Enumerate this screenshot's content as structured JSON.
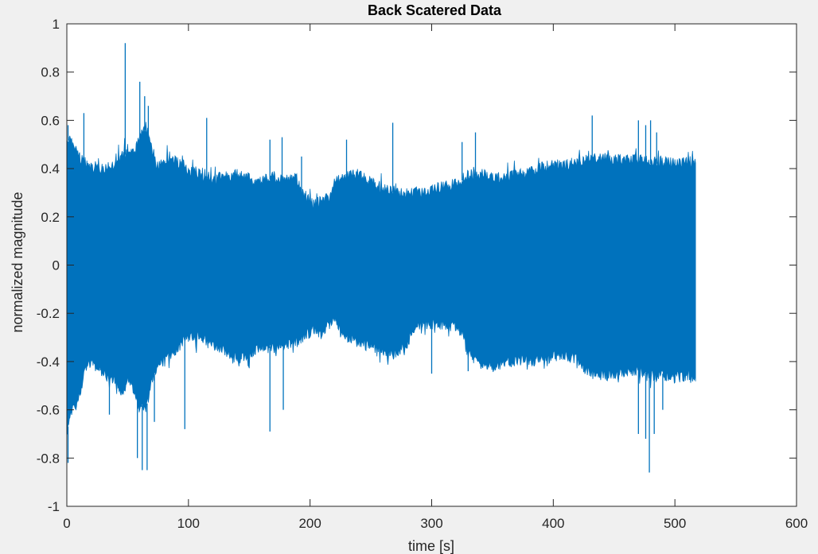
{
  "chart_data": {
    "type": "line",
    "title": "Back Scatered Data",
    "xlabel": "time [s]",
    "ylabel": "normalized magnitude",
    "xlim": [
      0,
      600
    ],
    "ylim": [
      -1,
      1
    ],
    "xticks": [
      0,
      100,
      200,
      300,
      400,
      500,
      600
    ],
    "yticks": [
      -1,
      -0.8,
      -0.6,
      -0.4,
      -0.2,
      0,
      0.2,
      0.4,
      0.6,
      0.8,
      1
    ],
    "xtick_labels": [
      "0",
      "100",
      "200",
      "300",
      "400",
      "500",
      "600"
    ],
    "ytick_labels": [
      "-1",
      "-0.8",
      "-0.6",
      "-0.4",
      "-0.2",
      "0",
      "0.2",
      "0.4",
      "0.6",
      "0.8",
      "1"
    ],
    "grid": false,
    "line_color": "#0072BD",
    "series": [
      {
        "description": "oscillating signal filling between upper and lower envelopes",
        "x_range": [
          0,
          517
        ],
        "upper_envelope": [
          [
            0,
            0.55
          ],
          [
            5,
            0.53
          ],
          [
            10,
            0.47
          ],
          [
            15,
            0.45
          ],
          [
            20,
            0.43
          ],
          [
            25,
            0.44
          ],
          [
            30,
            0.42
          ],
          [
            40,
            0.45
          ],
          [
            45,
            0.47
          ],
          [
            50,
            0.5
          ],
          [
            55,
            0.48
          ],
          [
            60,
            0.55
          ],
          [
            65,
            0.6
          ],
          [
            70,
            0.5
          ],
          [
            75,
            0.43
          ],
          [
            80,
            0.45
          ],
          [
            85,
            0.47
          ],
          [
            90,
            0.45
          ],
          [
            100,
            0.41
          ],
          [
            110,
            0.4
          ],
          [
            120,
            0.38
          ],
          [
            130,
            0.39
          ],
          [
            140,
            0.4
          ],
          [
            150,
            0.38
          ],
          [
            160,
            0.37
          ],
          [
            170,
            0.39
          ],
          [
            180,
            0.38
          ],
          [
            190,
            0.38
          ],
          [
            195,
            0.3
          ],
          [
            200,
            0.29
          ],
          [
            205,
            0.28
          ],
          [
            210,
            0.29
          ],
          [
            215,
            0.3
          ],
          [
            220,
            0.37
          ],
          [
            225,
            0.38
          ],
          [
            230,
            0.39
          ],
          [
            240,
            0.4
          ],
          [
            250,
            0.37
          ],
          [
            260,
            0.34
          ],
          [
            270,
            0.33
          ],
          [
            280,
            0.32
          ],
          [
            290,
            0.33
          ],
          [
            300,
            0.34
          ],
          [
            310,
            0.35
          ],
          [
            320,
            0.36
          ],
          [
            325,
            0.38
          ],
          [
            330,
            0.4
          ],
          [
            340,
            0.4
          ],
          [
            350,
            0.39
          ],
          [
            360,
            0.38
          ],
          [
            370,
            0.4
          ],
          [
            380,
            0.41
          ],
          [
            390,
            0.43
          ],
          [
            400,
            0.44
          ],
          [
            410,
            0.44
          ],
          [
            420,
            0.45
          ],
          [
            430,
            0.46
          ],
          [
            440,
            0.47
          ],
          [
            450,
            0.46
          ],
          [
            460,
            0.46
          ],
          [
            470,
            0.46
          ],
          [
            480,
            0.45
          ],
          [
            490,
            0.45
          ],
          [
            500,
            0.45
          ],
          [
            510,
            0.45
          ],
          [
            517,
            0.45
          ]
        ],
        "lower_envelope": [
          [
            0,
            -0.72
          ],
          [
            5,
            -0.62
          ],
          [
            10,
            -0.58
          ],
          [
            15,
            -0.45
          ],
          [
            20,
            -0.42
          ],
          [
            25,
            -0.45
          ],
          [
            30,
            -0.47
          ],
          [
            40,
            -0.5
          ],
          [
            45,
            -0.55
          ],
          [
            50,
            -0.5
          ],
          [
            55,
            -0.55
          ],
          [
            60,
            -0.6
          ],
          [
            65,
            -0.63
          ],
          [
            70,
            -0.5
          ],
          [
            75,
            -0.45
          ],
          [
            80,
            -0.42
          ],
          [
            85,
            -0.4
          ],
          [
            90,
            -0.37
          ],
          [
            100,
            -0.32
          ],
          [
            110,
            -0.32
          ],
          [
            120,
            -0.35
          ],
          [
            130,
            -0.38
          ],
          [
            140,
            -0.41
          ],
          [
            150,
            -0.39
          ],
          [
            160,
            -0.36
          ],
          [
            170,
            -0.37
          ],
          [
            180,
            -0.35
          ],
          [
            190,
            -0.34
          ],
          [
            195,
            -0.32
          ],
          [
            200,
            -0.3
          ],
          [
            210,
            -0.3
          ],
          [
            215,
            -0.27
          ],
          [
            220,
            -0.25
          ],
          [
            225,
            -0.3
          ],
          [
            230,
            -0.32
          ],
          [
            240,
            -0.35
          ],
          [
            250,
            -0.36
          ],
          [
            260,
            -0.38
          ],
          [
            270,
            -0.39
          ],
          [
            280,
            -0.35
          ],
          [
            285,
            -0.3
          ],
          [
            290,
            -0.27
          ],
          [
            300,
            -0.27
          ],
          [
            310,
            -0.28
          ],
          [
            320,
            -0.28
          ],
          [
            325,
            -0.3
          ],
          [
            330,
            -0.4
          ],
          [
            340,
            -0.43
          ],
          [
            350,
            -0.44
          ],
          [
            360,
            -0.43
          ],
          [
            370,
            -0.42
          ],
          [
            380,
            -0.42
          ],
          [
            390,
            -0.42
          ],
          [
            400,
            -0.4
          ],
          [
            410,
            -0.4
          ],
          [
            420,
            -0.41
          ],
          [
            425,
            -0.45
          ],
          [
            430,
            -0.47
          ],
          [
            440,
            -0.48
          ],
          [
            450,
            -0.48
          ],
          [
            460,
            -0.46
          ],
          [
            470,
            -0.47
          ],
          [
            480,
            -0.48
          ],
          [
            490,
            -0.48
          ],
          [
            500,
            -0.49
          ],
          [
            510,
            -0.48
          ],
          [
            517,
            -0.5
          ]
        ],
        "upward_spikes": [
          [
            1,
            0.58
          ],
          [
            14,
            0.63
          ],
          [
            48,
            0.92
          ],
          [
            60,
            0.76
          ],
          [
            64,
            0.7
          ],
          [
            67,
            0.66
          ],
          [
            115,
            0.61
          ],
          [
            167,
            0.52
          ],
          [
            177,
            0.53
          ],
          [
            193,
            0.45
          ],
          [
            230,
            0.52
          ],
          [
            268,
            0.59
          ],
          [
            325,
            0.51
          ],
          [
            336,
            0.55
          ],
          [
            432,
            0.62
          ],
          [
            470,
            0.6
          ],
          [
            476,
            0.58
          ],
          [
            480,
            0.6
          ],
          [
            485,
            0.55
          ]
        ],
        "downward_spikes": [
          [
            1,
            -0.82
          ],
          [
            35,
            -0.62
          ],
          [
            58,
            -0.8
          ],
          [
            62,
            -0.85
          ],
          [
            66,
            -0.85
          ],
          [
            72,
            -0.65
          ],
          [
            97,
            -0.68
          ],
          [
            167,
            -0.69
          ],
          [
            178,
            -0.6
          ],
          [
            300,
            -0.45
          ],
          [
            330,
            -0.44
          ],
          [
            470,
            -0.7
          ],
          [
            476,
            -0.72
          ],
          [
            479,
            -0.86
          ],
          [
            483,
            -0.7
          ],
          [
            490,
            -0.6
          ]
        ]
      }
    ]
  }
}
